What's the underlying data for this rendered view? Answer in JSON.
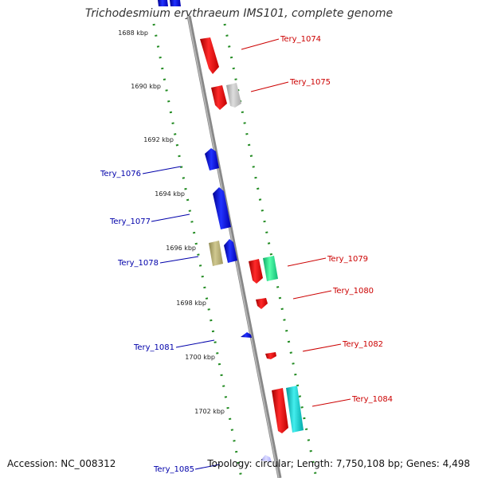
{
  "title": "Trichodesmium erythraeum IMS101, complete genome",
  "accession_label": "Accession: NC_008312",
  "stats_label": "Topology: circular; Length: 7,750,108 bp; Genes: 4,498",
  "position_ticks": [
    "1688 kbp",
    "1690 kbp",
    "1692 kbp",
    "1694 kbp",
    "1696 kbp",
    "1698 kbp",
    "1700 kbp",
    "1702 kbp"
  ],
  "gene_labels_forward": [
    "Tery_1074",
    "Tery_1075",
    "Tery_1079",
    "Tery_1080",
    "Tery_1082",
    "Tery_1084"
  ],
  "gene_labels_reverse": [
    "Tery_1076",
    "Tery_1077",
    "Tery_1078",
    "Tery_1081",
    "Tery_1085"
  ],
  "colors": {
    "forward_strand": "#ff0000",
    "reverse_strand": "#0000ff",
    "forward_label": "#cc0000",
    "reverse_label": "#0000aa",
    "grey_gene": "#bbbbbb",
    "olive_gene": "#b8b079",
    "green_gene": "#22ee88",
    "cyan_gene": "#11cccc",
    "lavender_gene": "#bbbbff",
    "backbone": "#888888",
    "dots": "#228b22"
  }
}
